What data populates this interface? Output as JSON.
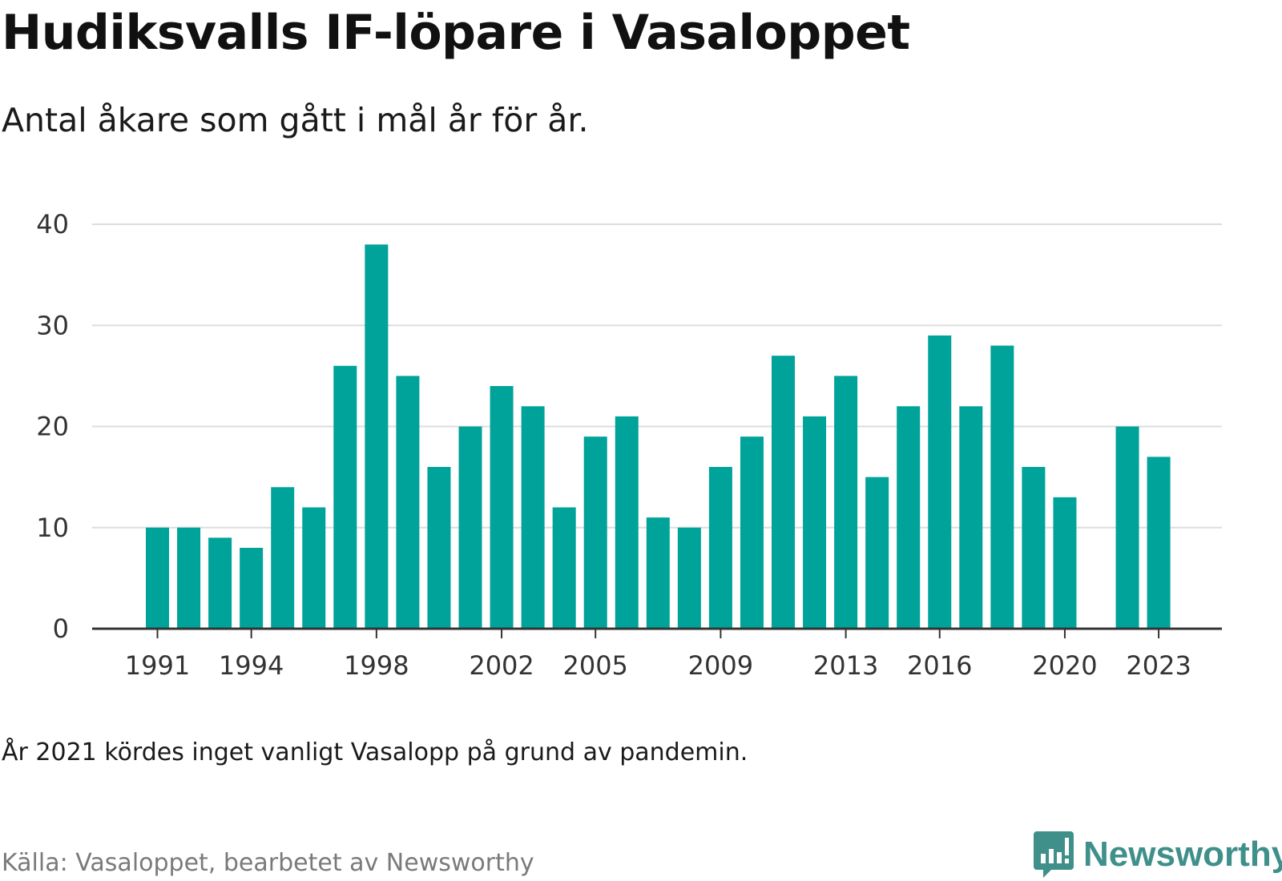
{
  "title": "Hudiksvalls IF-löpare i Vasaloppet",
  "subtitle": "Antal åkare som gått i mål år för år.",
  "note": "År 2021 kördes inget vanligt Vasalopp på grund av pandemin.",
  "source": "Källa: Vasaloppet, bearbetet av Newsworthy",
  "logo": {
    "text": "Newsworthy",
    "icon": "bar-chart-speech-bubble-icon"
  },
  "colors": {
    "bar": "#00a39a",
    "grid": "#dddddd",
    "axis": "#333333",
    "logo": "#3f8f8a"
  },
  "chart_data": {
    "type": "bar",
    "title": "Hudiksvalls IF-löpare i Vasaloppet",
    "subtitle": "Antal åkare som gått i mål år för år.",
    "xlabel": "",
    "ylabel": "",
    "ylim": [
      0,
      40
    ],
    "yticks": [
      0,
      10,
      20,
      30,
      40
    ],
    "xticks": [
      1991,
      1994,
      1998,
      2002,
      2005,
      2009,
      2013,
      2016,
      2020,
      2023
    ],
    "grid": true,
    "categories": [
      1991,
      1992,
      1993,
      1994,
      1995,
      1996,
      1997,
      1998,
      1999,
      2000,
      2001,
      2002,
      2003,
      2004,
      2005,
      2006,
      2007,
      2008,
      2009,
      2010,
      2011,
      2012,
      2013,
      2014,
      2015,
      2016,
      2017,
      2018,
      2019,
      2020,
      2021,
      2022,
      2023
    ],
    "values": [
      10,
      10,
      9,
      8,
      14,
      12,
      26,
      38,
      25,
      16,
      20,
      24,
      22,
      12,
      19,
      21,
      11,
      10,
      16,
      19,
      27,
      21,
      25,
      15,
      22,
      29,
      22,
      28,
      16,
      13,
      null,
      20,
      17
    ]
  }
}
